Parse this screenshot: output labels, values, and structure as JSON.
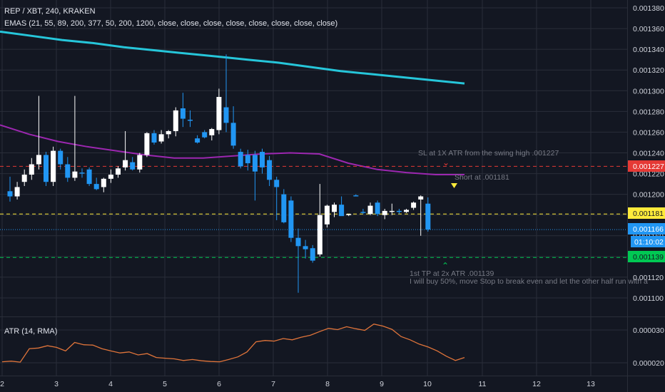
{
  "header": {
    "symbol_line": "REP / XBT, 240, KRAKEN",
    "ema_line": "EMAS (21, 55, 89, 200, 377, 50, 200, 1200, close, close, close, close, close, close, close, close)"
  },
  "atr_pane": {
    "label": "ATR (14, RMA)"
  },
  "colors": {
    "background": "#131722",
    "grid": "#2a2e39",
    "bull": "#ffffff",
    "bear": "#2196f3",
    "ema_cyan": "#26c6da",
    "ema_purple": "#9c27b0",
    "atr_line": "#e0743a",
    "stop_line": "#e53935",
    "entry_line": "#ffeb3b",
    "target_line": "#00c853",
    "last_price": "#2196f3"
  },
  "price_axis": {
    "ticks": [
      "0.001380",
      "0.001360",
      "0.001340",
      "0.001320",
      "0.001300",
      "0.001280",
      "0.001260",
      "0.001240",
      "0.001220",
      "0.001200",
      "0.001180",
      "0.001160",
      "0.001140",
      "0.001120",
      "0.001100"
    ]
  },
  "atr_axis": {
    "ticks": [
      "0.000030",
      "0.000020"
    ]
  },
  "time_axis": {
    "ticks": [
      "2",
      "3",
      "4",
      "5",
      "6",
      "7",
      "8",
      "9",
      "10",
      "11",
      "12",
      "13"
    ]
  },
  "price_badges": {
    "stop": "0.001227",
    "entry": "0.001181",
    "last": "0.001166",
    "countdown": "01:10:02",
    "target": "0.001139"
  },
  "annotations": {
    "stop_note": "SL at 1X ATR from the swing high .001227",
    "entry_note": "Short at .001181",
    "target_note_1": "1st TP at 2x ATR .001139",
    "target_note_2": "I will buy 50%, move Stop to break even and let the other half run with a"
  },
  "chart_data": {
    "type": "candlestick",
    "price_range": [
      0.00109,
      0.00139
    ],
    "levels": {
      "stop": 0.001227,
      "entry": 0.001181,
      "last": 0.001166,
      "target": 0.001139
    },
    "candles": [
      [
        0.001203,
        0.001217,
        0.001193,
        0.001198
      ],
      [
        0.001198,
        0.001212,
        0.001195,
        0.001207
      ],
      [
        0.001212,
        0.001224,
        0.001208,
        0.001219
      ],
      [
        0.001219,
        0.001235,
        0.001214,
        0.001229
      ],
      [
        0.001229,
        0.001295,
        0.001224,
        0.001238
      ],
      [
        0.001238,
        0.001241,
        0.001208,
        0.001212
      ],
      [
        0.001212,
        0.001246,
        0.001208,
        0.001242
      ],
      [
        0.001242,
        0.001244,
        0.001224,
        0.001229
      ],
      [
        0.001229,
        0.001236,
        0.001212,
        0.001216
      ],
      [
        0.001216,
        0.001295,
        0.001213,
        0.001222
      ],
      [
        0.001221,
        0.001225,
        0.001216,
        0.00122
      ],
      [
        0.001224,
        0.001226,
        0.001208,
        0.00121
      ],
      [
        0.00121,
        0.001216,
        0.001204,
        0.001205
      ],
      [
        0.001207,
        0.001216,
        0.001202,
        0.001215
      ],
      [
        0.001215,
        0.001224,
        0.001211,
        0.001219
      ],
      [
        0.001219,
        0.001227,
        0.001216,
        0.001225
      ],
      [
        0.001226,
        0.001261,
        0.001223,
        0.001233
      ],
      [
        0.001231,
        0.001236,
        0.001223,
        0.001224
      ],
      [
        0.001224,
        0.00124,
        0.001221,
        0.001238
      ],
      [
        0.001238,
        0.00126,
        0.001236,
        0.001259
      ],
      [
        0.001259,
        0.001262,
        0.001248,
        0.00125
      ],
      [
        0.001251,
        0.001262,
        0.001249,
        0.001258
      ],
      [
        0.001258,
        0.001262,
        0.001254,
        0.001261
      ],
      [
        0.001261,
        0.001284,
        0.001256,
        0.001281
      ],
      [
        0.001283,
        0.001298,
        0.001265,
        0.001273
      ],
      [
        0.001272,
        0.001281,
        0.001265,
        0.001271
      ],
      [
        0.001254,
        0.001257,
        0.001249,
        0.00125
      ],
      [
        0.00126,
        0.001262,
        0.001254,
        0.001255
      ],
      [
        0.001257,
        0.001264,
        0.001252,
        0.001263
      ],
      [
        0.001262,
        0.001302,
        0.001258,
        0.001294
      ],
      [
        0.001284,
        0.001335,
        0.00126,
        0.001269
      ],
      [
        0.001269,
        0.001285,
        0.001244,
        0.001247
      ],
      [
        0.001241,
        0.001244,
        0.001225,
        0.001227
      ],
      [
        0.001238,
        0.001243,
        0.001223,
        0.00123
      ],
      [
        0.001238,
        0.001242,
        0.001194,
        0.001222
      ],
      [
        0.001241,
        0.001244,
        0.00122,
        0.001226
      ],
      [
        0.001233,
        0.001237,
        0.001208,
        0.001214
      ],
      [
        0.001214,
        0.001217,
        0.001175,
        0.001207
      ],
      [
        0.0012,
        0.001205,
        0.001172,
        0.001173
      ],
      [
        0.001194,
        0.001198,
        0.001154,
        0.001158
      ],
      [
        0.001158,
        0.001167,
        0.001105,
        0.00115
      ],
      [
        0.00115,
        0.001156,
        0.001138,
        0.001147
      ],
      [
        0.001148,
        0.001151,
        0.001134,
        0.001136
      ],
      [
        0.001142,
        0.00121,
        0.00114,
        0.00118
      ],
      [
        0.001171,
        0.00119,
        0.001168,
        0.001189
      ],
      [
        0.001183,
        0.001192,
        0.001178,
        0.00119
      ],
      [
        0.00119,
        0.001198,
        0.00118,
        0.001179
      ],
      [
        0.00118,
        0.001181,
        0.001179,
        0.001181
      ],
      [
        0.001199,
        0.0012,
        0.001198,
        0.001198
      ],
      [
        0.001183,
        0.001186,
        0.001181,
        0.001182
      ],
      [
        0.001181,
        0.001192,
        0.00118,
        0.001189
      ],
      [
        0.001192,
        0.001194,
        0.001179,
        0.001181
      ],
      [
        0.00118,
        0.001186,
        0.001176,
        0.001184
      ],
      [
        0.001183,
        0.001191,
        0.00118,
        0.001184
      ],
      [
        0.001184,
        0.001186,
        0.001181,
        0.001183
      ],
      [
        0.001183,
        0.001186,
        0.001182,
        0.001185
      ],
      [
        0.001187,
        0.001193,
        0.001185,
        0.001192
      ],
      [
        0.001195,
        0.001199,
        0.00116,
        0.001198
      ],
      [
        0.001191,
        0.001197,
        0.001164,
        0.001166
      ]
    ],
    "ema_long": [
      0.001357,
      0.001353,
      0.001349,
      0.001346,
      0.001342,
      0.001339,
      0.001336,
      0.001333,
      0.00133,
      0.001327,
      0.001323,
      0.001319,
      0.001316,
      0.001313,
      0.00131,
      0.001307
    ],
    "ema_mid": [
      0.001267,
      0.001258,
      0.001251,
      0.001246,
      0.001242,
      0.001238,
      0.001235,
      0.001235,
      0.001237,
      0.001239,
      0.00124,
      0.001239,
      0.00123,
      0.001224,
      0.001221,
      0.001219,
      0.001219
    ],
    "atr": {
      "range": [
        1.7e-05,
        3.5e-05
      ],
      "values": [
        2.03e-05,
        2.05e-05,
        2.02e-05,
        2.43e-05,
        2.45e-05,
        2.52e-05,
        2.47e-05,
        2.36e-05,
        2.62e-05,
        2.55e-05,
        2.54e-05,
        2.43e-05,
        2.36e-05,
        2.3e-05,
        2.33e-05,
        2.24e-05,
        2.28e-05,
        2.16e-05,
        2.14e-05,
        2.12e-05,
        2.07e-05,
        2.1e-05,
        2.06e-05,
        2.04e-05,
        2.03e-05,
        2.1e-05,
        2.18e-05,
        2.33e-05,
        2.64e-05,
        2.68e-05,
        2.66e-05,
        2.74e-05,
        2.7e-05,
        2.78e-05,
        2.84e-05,
        2.95e-05,
        3.05e-05,
        3.01e-05,
        3.1e-05,
        3.04e-05,
        2.99e-05,
        3.18e-05,
        3.12e-05,
        3.02e-05,
        2.8e-05,
        2.7e-05,
        2.57e-05,
        2.48e-05,
        2.36e-05,
        2.2e-05,
        2.07e-05,
        2.16e-05
      ]
    }
  }
}
